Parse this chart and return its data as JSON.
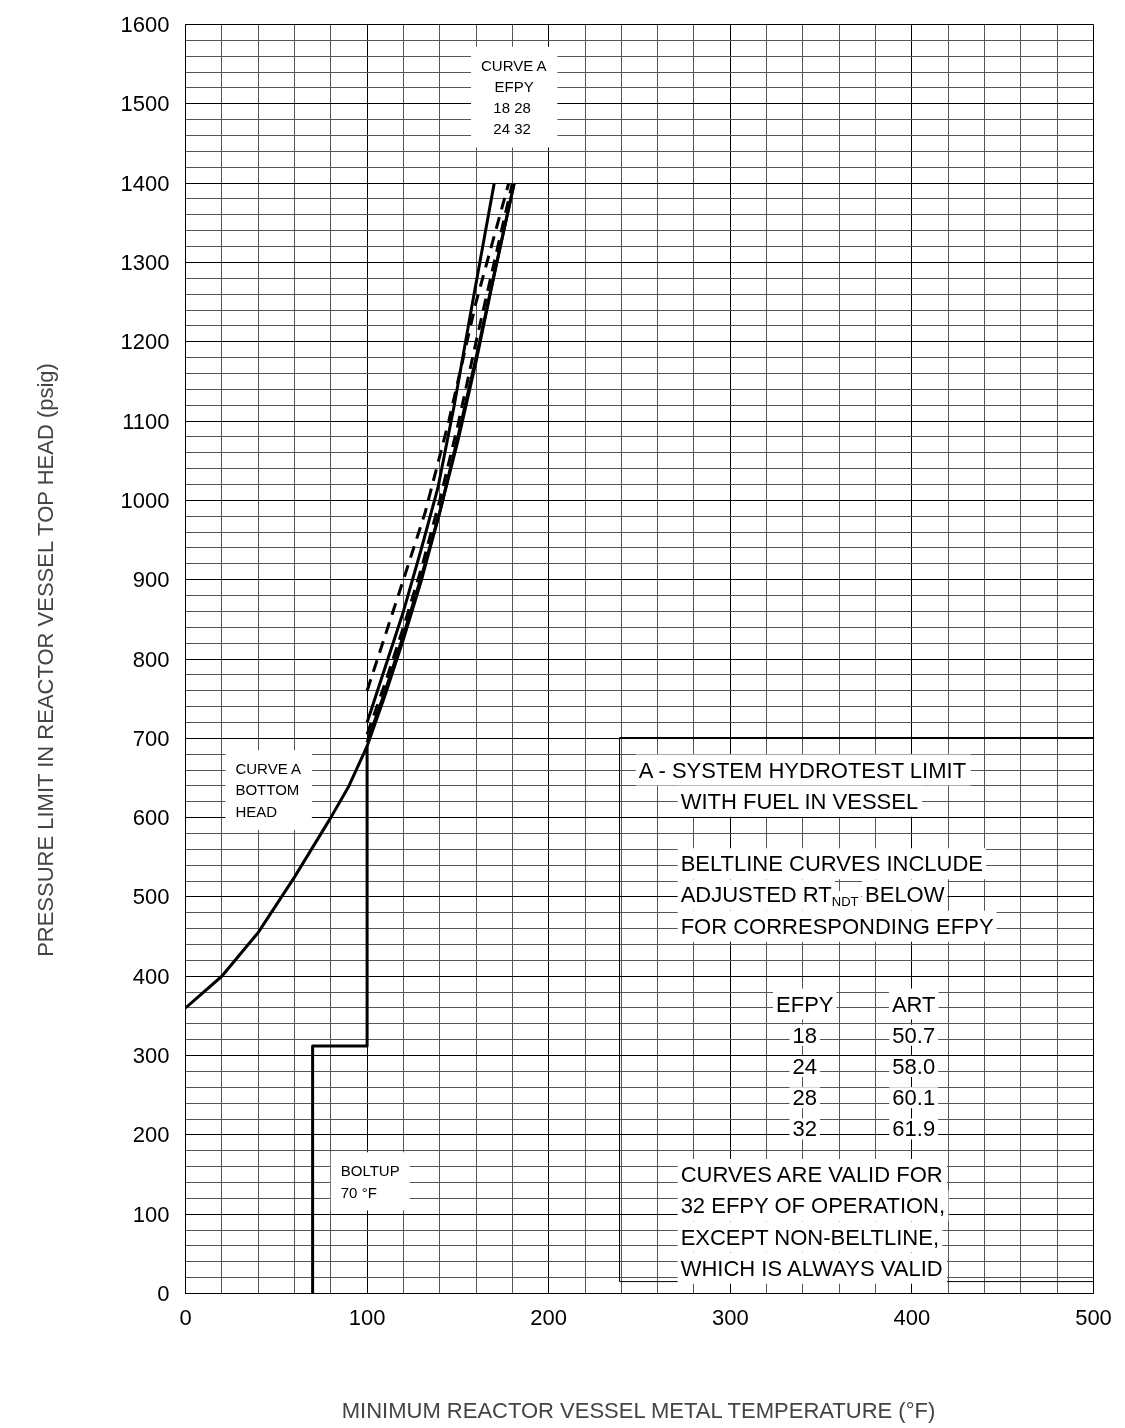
{
  "chart_data": {
    "type": "line",
    "xlabel": "MINIMUM REACTOR VESSEL METAL TEMPERATURE (°F)",
    "ylabel": "PRESSURE LIMIT IN REACTOR VESSEL TOP HEAD (psig)",
    "xlim": [
      0,
      500
    ],
    "ylim": [
      0,
      1600
    ],
    "xticks": [
      0,
      100,
      200,
      300,
      400,
      500
    ],
    "yticks": [
      0,
      100,
      200,
      300,
      400,
      500,
      600,
      700,
      800,
      900,
      1000,
      1100,
      1200,
      1300,
      1400,
      1500,
      1600
    ],
    "grid": true,
    "marker": "none",
    "series": [
      {
        "color": "#000000",
        "line_style": "solid",
        "x": [
          0,
          20,
          40,
          60,
          80,
          90,
          100,
          110,
          120,
          130,
          140,
          150,
          160,
          170,
          181
        ],
        "values": [
          360,
          400,
          455,
          525,
          600,
          640,
          690,
          755,
          825,
          900,
          985,
          1075,
          1175,
          1285,
          1400
        ]
      },
      {
        "color": "#000000",
        "line_style": "solid",
        "x": [
          70,
          70,
          100,
          100
        ],
        "values": [
          0,
          312,
          312,
          690
        ]
      },
      {
        "color": "#000000",
        "line_style": "solid",
        "x": [
          100,
          110,
          120,
          130,
          139,
          148,
          157,
          170
        ],
        "values": [
          720,
          790,
          860,
          940,
          1016,
          1120,
          1236,
          1400
        ]
      },
      {
        "color": "#000000",
        "line_style": "dashed",
        "x": [
          100,
          110,
          120,
          132,
          145,
          160,
          178
        ],
        "values": [
          760,
          830,
          900,
          985,
          1100,
          1250,
          1400
        ]
      },
      {
        "color": "#000000",
        "line_style": "dashed",
        "x": [
          100,
          110,
          120,
          130,
          140,
          150,
          160,
          170,
          180
        ],
        "values": [
          705,
          770,
          840,
          915,
          1000,
          1095,
          1200,
          1300,
          1400
        ]
      },
      {
        "color": "#000000",
        "line_style": "solid",
        "x": [
          100,
          110,
          120,
          130,
          140,
          150,
          160,
          170,
          181
        ],
        "values": [
          695,
          760,
          830,
          905,
          985,
          1080,
          1180,
          1285,
          1400
        ]
      }
    ],
    "annotations": [
      "CURVE A\nEFPY\n18  28\n24  32",
      "CURVE A\nBOTTOM\nHEAD",
      "BOLTUP\n70 °F",
      "A - SYSTEM HYDROTEST LIMIT\nWITH FUEL IN VESSEL\n\nBELTLINE CURVES INCLUDE\nADJUSTED RT$_{NDT}$ BELOW\nFOR CORRESPONDING EFPY",
      "EFPY ART\n18 50.7\n24 58.0\n28 60.1\n32 61.9",
      "CURVES ARE VALID FOR\n32 EFPY OF OPERATION,\nEXCEPT NON-BELTLINE,\nWHICH IS ALWAYS VALID"
    ]
  }
}
